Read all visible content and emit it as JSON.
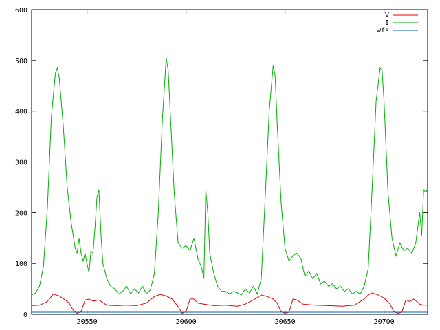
{
  "chart_data": {
    "type": "line",
    "title": "",
    "xlabel": "",
    "ylabel": "",
    "xlim": [
      20522,
      20722
    ],
    "ylim": [
      0,
      600
    ],
    "x_ticks": [
      20550,
      20600,
      20650,
      20700
    ],
    "y_ticks": [
      0,
      100,
      200,
      300,
      400,
      500,
      600
    ],
    "x_tick_labels": [
      "20550",
      "20600",
      "20650",
      "20700"
    ],
    "y_tick_labels": [
      "0",
      "100",
      "200",
      "300",
      "400",
      "500",
      "600"
    ],
    "grid": false,
    "legend_position": "top-right",
    "series": [
      {
        "name": "V",
        "color": "#e00000",
        "points": [
          [
            20522,
            17
          ],
          [
            20526,
            18
          ],
          [
            20530,
            25
          ],
          [
            20533,
            40
          ],
          [
            20536,
            36
          ],
          [
            20539,
            28
          ],
          [
            20541,
            22
          ],
          [
            20543,
            8
          ],
          [
            20545,
            2
          ],
          [
            20547,
            5
          ],
          [
            20549,
            28
          ],
          [
            20551,
            30
          ],
          [
            20553,
            26
          ],
          [
            20556,
            28
          ],
          [
            20560,
            18
          ],
          [
            20565,
            17
          ],
          [
            20570,
            18
          ],
          [
            20575,
            17
          ],
          [
            20580,
            22
          ],
          [
            20584,
            35
          ],
          [
            20587,
            39
          ],
          [
            20590,
            36
          ],
          [
            20593,
            30
          ],
          [
            20596,
            15
          ],
          [
            20598,
            2
          ],
          [
            20600,
            5
          ],
          [
            20602,
            30
          ],
          [
            20604,
            30
          ],
          [
            20606,
            22
          ],
          [
            20609,
            20
          ],
          [
            20614,
            17
          ],
          [
            20620,
            18
          ],
          [
            20626,
            16
          ],
          [
            20630,
            20
          ],
          [
            20634,
            28
          ],
          [
            20638,
            38
          ],
          [
            20641,
            35
          ],
          [
            20644,
            30
          ],
          [
            20646,
            22
          ],
          [
            20648,
            5
          ],
          [
            20650,
            2
          ],
          [
            20652,
            4
          ],
          [
            20654,
            30
          ],
          [
            20656,
            28
          ],
          [
            20659,
            20
          ],
          [
            20665,
            18
          ],
          [
            20672,
            17
          ],
          [
            20679,
            16
          ],
          [
            20685,
            18
          ],
          [
            20690,
            30
          ],
          [
            20692,
            38
          ],
          [
            20694,
            42
          ],
          [
            20697,
            38
          ],
          [
            20700,
            32
          ],
          [
            20703,
            20
          ],
          [
            20705,
            5
          ],
          [
            20707,
            2
          ],
          [
            20709,
            4
          ],
          [
            20711,
            28
          ],
          [
            20713,
            25
          ],
          [
            20715,
            30
          ],
          [
            20718,
            20
          ],
          [
            20720,
            18
          ],
          [
            20722,
            18
          ]
        ]
      },
      {
        "name": "I",
        "color": "#00b000",
        "points": [
          [
            20522,
            38
          ],
          [
            20524,
            42
          ],
          [
            20526,
            55
          ],
          [
            20528,
            95
          ],
          [
            20530,
            210
          ],
          [
            20532,
            390
          ],
          [
            20534,
            475
          ],
          [
            20535,
            485
          ],
          [
            20536,
            465
          ],
          [
            20538,
            370
          ],
          [
            20540,
            250
          ],
          [
            20542,
            180
          ],
          [
            20544,
            130
          ],
          [
            20545,
            120
          ],
          [
            20546,
            150
          ],
          [
            20547,
            120
          ],
          [
            20548,
            105
          ],
          [
            20549,
            120
          ],
          [
            20550,
            100
          ],
          [
            20551,
            82
          ],
          [
            20552,
            125
          ],
          [
            20553,
            120
          ],
          [
            20554,
            170
          ],
          [
            20555,
            230
          ],
          [
            20556,
            245
          ],
          [
            20557,
            160
          ],
          [
            20558,
            100
          ],
          [
            20560,
            70
          ],
          [
            20562,
            55
          ],
          [
            20564,
            50
          ],
          [
            20566,
            40
          ],
          [
            20568,
            45
          ],
          [
            20570,
            55
          ],
          [
            20572,
            40
          ],
          [
            20574,
            50
          ],
          [
            20576,
            42
          ],
          [
            20578,
            55
          ],
          [
            20580,
            40
          ],
          [
            20582,
            48
          ],
          [
            20584,
            80
          ],
          [
            20586,
            200
          ],
          [
            20588,
            380
          ],
          [
            20590,
            505
          ],
          [
            20591,
            480
          ],
          [
            20592,
            400
          ],
          [
            20594,
            240
          ],
          [
            20596,
            140
          ],
          [
            20598,
            130
          ],
          [
            20600,
            135
          ],
          [
            20602,
            125
          ],
          [
            20604,
            150
          ],
          [
            20606,
            110
          ],
          [
            20608,
            90
          ],
          [
            20609,
            70
          ],
          [
            20610,
            245
          ],
          [
            20611,
            200
          ],
          [
            20612,
            120
          ],
          [
            20614,
            80
          ],
          [
            20616,
            55
          ],
          [
            20618,
            45
          ],
          [
            20620,
            45
          ],
          [
            20622,
            40
          ],
          [
            20624,
            45
          ],
          [
            20626,
            42
          ],
          [
            20628,
            38
          ],
          [
            20630,
            50
          ],
          [
            20632,
            42
          ],
          [
            20634,
            55
          ],
          [
            20636,
            40
          ],
          [
            20638,
            70
          ],
          [
            20640,
            230
          ],
          [
            20642,
            400
          ],
          [
            20644,
            490
          ],
          [
            20645,
            470
          ],
          [
            20646,
            380
          ],
          [
            20648,
            220
          ],
          [
            20650,
            130
          ],
          [
            20652,
            105
          ],
          [
            20654,
            115
          ],
          [
            20656,
            120
          ],
          [
            20658,
            110
          ],
          [
            20660,
            75
          ],
          [
            20662,
            85
          ],
          [
            20664,
            70
          ],
          [
            20666,
            80
          ],
          [
            20668,
            60
          ],
          [
            20670,
            65
          ],
          [
            20672,
            55
          ],
          [
            20674,
            60
          ],
          [
            20676,
            50
          ],
          [
            20678,
            55
          ],
          [
            20680,
            45
          ],
          [
            20682,
            50
          ],
          [
            20684,
            40
          ],
          [
            20686,
            45
          ],
          [
            20688,
            40
          ],
          [
            20690,
            55
          ],
          [
            20692,
            90
          ],
          [
            20694,
            250
          ],
          [
            20696,
            420
          ],
          [
            20698,
            485
          ],
          [
            20699,
            480
          ],
          [
            20700,
            420
          ],
          [
            20702,
            240
          ],
          [
            20704,
            150
          ],
          [
            20706,
            115
          ],
          [
            20708,
            140
          ],
          [
            20710,
            125
          ],
          [
            20712,
            130
          ],
          [
            20714,
            120
          ],
          [
            20716,
            140
          ],
          [
            20718,
            200
          ],
          [
            20719,
            155
          ],
          [
            20720,
            245
          ],
          [
            20721,
            240
          ],
          [
            20722,
            245
          ]
        ]
      },
      {
        "name": "wfs",
        "color": "#0060c0",
        "points": [
          [
            20522,
            4
          ],
          [
            20550,
            4
          ],
          [
            20600,
            4
          ],
          [
            20650,
            4
          ],
          [
            20700,
            4
          ],
          [
            20722,
            4
          ]
        ]
      }
    ]
  }
}
